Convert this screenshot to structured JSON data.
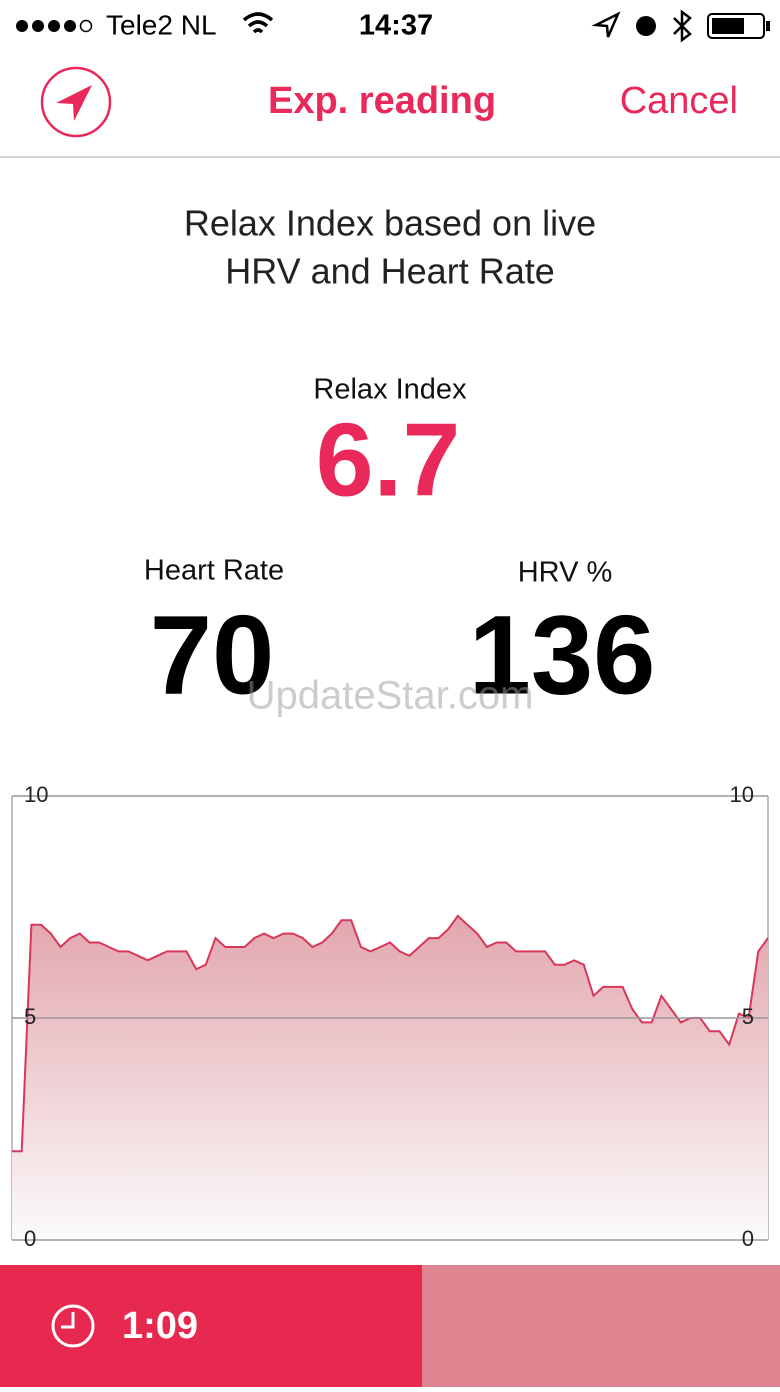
{
  "status_bar": {
    "carrier": "Tele2 NL",
    "time": "14:37"
  },
  "nav": {
    "title": "Exp. reading",
    "cancel": "Cancel"
  },
  "description": [
    "Relax Index based on live",
    "HRV and Heart Rate"
  ],
  "relax_index": {
    "label": "Relax Index",
    "value": 6.7
  },
  "heart_rate": {
    "label": "Heart Rate",
    "value": 70
  },
  "hrv": {
    "label": "HRV %",
    "value": 136
  },
  "watermark": "UpdateStar.com",
  "chart": {
    "type": "line",
    "color": "#d9375a",
    "ylim": [
      0,
      10
    ],
    "yticks": [
      0,
      5,
      10
    ],
    "grid": true,
    "values": [
      2.0,
      2.0,
      7.1,
      7.1,
      6.9,
      6.6,
      6.8,
      6.9,
      6.7,
      6.7,
      6.6,
      6.5,
      6.5,
      6.4,
      6.3,
      6.4,
      6.5,
      6.5,
      6.5,
      6.1,
      6.2,
      6.8,
      6.6,
      6.6,
      6.6,
      6.8,
      6.9,
      6.8,
      6.9,
      6.9,
      6.8,
      6.6,
      6.7,
      6.9,
      7.2,
      7.2,
      6.6,
      6.5,
      6.6,
      6.7,
      6.5,
      6.4,
      6.6,
      6.8,
      6.8,
      7.0,
      7.3,
      7.1,
      6.9,
      6.6,
      6.7,
      6.7,
      6.5,
      6.5,
      6.5,
      6.5,
      6.2,
      6.2,
      6.3,
      6.2,
      5.5,
      5.7,
      5.7,
      5.7,
      5.2,
      4.9,
      4.9,
      5.5,
      5.2,
      4.9,
      5.0,
      5.0,
      4.7,
      4.7,
      4.4,
      5.1,
      5.0,
      6.5,
      6.8
    ]
  },
  "timer": "1:09"
}
